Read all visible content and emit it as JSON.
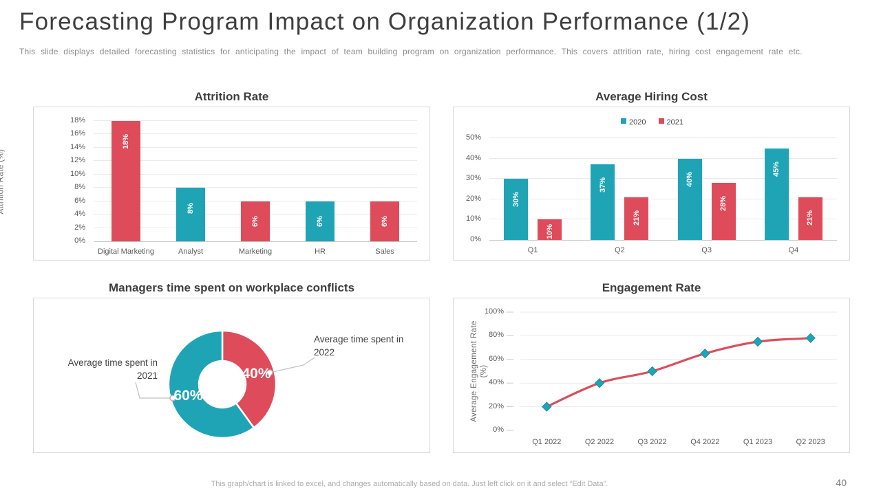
{
  "header": {
    "title": "Forecasting Program Impact on Organization Performance (1/2)",
    "subtitle": "This slide displays detailed forecasting statistics for anticipating the impact of team building program on organization performance. This covers attrition rate, hiring cost engagement rate etc."
  },
  "footer": {
    "note": "This graph/chart is linked to excel, and changes automatically based on data. Just left click on it and select “Edit Data”.",
    "page_number": "40"
  },
  "colors": {
    "teal": "#1EA4B5",
    "red": "#DE4B5A",
    "line_red": "#D7505E",
    "marker_edge": "#17909F",
    "axis_text": "#595959",
    "grid": "#E9E9E9",
    "axis_line": "#C9C9C9",
    "label_on_bar": "#FFFFFF",
    "callout_line": "#C0C0C0"
  },
  "chart_data": [
    {
      "id": "attrition",
      "type": "bar",
      "title": "Attrition Rate",
      "ylabel": "Attrition Rate (%)",
      "categories": [
        "Digital Marketing",
        "Analyst",
        "Marketing",
        "HR",
        "Sales"
      ],
      "series": [
        {
          "values": [
            18,
            8,
            6,
            6,
            6
          ],
          "labels": [
            "18%",
            "8%",
            "6%",
            "6%",
            "6%"
          ],
          "bar_colors": [
            "red",
            "teal",
            "red",
            "teal",
            "red"
          ]
        }
      ],
      "ylim": [
        0,
        18
      ],
      "ytick_step": 2,
      "yticks": [
        "0%",
        "2%",
        "4%",
        "6%",
        "8%",
        "10%",
        "12%",
        "14%",
        "16%",
        "18%"
      ],
      "grid": true
    },
    {
      "id": "hiring",
      "type": "bar",
      "title": "Average Hiring Cost",
      "categories": [
        "Q1",
        "Q2",
        "Q3",
        "Q4"
      ],
      "series": [
        {
          "name": "2020",
          "color": "teal",
          "values": [
            30,
            37,
            40,
            45
          ],
          "labels": [
            "30%",
            "37%",
            "40%",
            "45%"
          ]
        },
        {
          "name": "2021",
          "color": "red",
          "values": [
            10,
            21,
            28,
            21
          ],
          "labels": [
            "10%",
            "21%",
            "28%",
            "21%"
          ]
        }
      ],
      "ylim": [
        0,
        50
      ],
      "ytick_step": 10,
      "yticks": [
        "0%",
        "10%",
        "20%",
        "30%",
        "40%",
        "50%"
      ],
      "legend_position": "top",
      "grid": true
    },
    {
      "id": "conflicts",
      "type": "pie",
      "title": "Managers time spent on workplace conflicts",
      "slices": [
        {
          "label": "Average time spent in 2022",
          "label_lines": [
            "Average time spent in",
            "2022"
          ],
          "value": 40,
          "value_label": "40%",
          "color": "red"
        },
        {
          "label": "Average time spent in 2021",
          "label_lines": [
            "Average time spent in",
            "2021"
          ],
          "value": 60,
          "value_label": "60%",
          "color": "teal"
        }
      ]
    },
    {
      "id": "engagement",
      "type": "line",
      "title": "Engagement Rate",
      "ylabel_lines": [
        "Average Engagement Rate",
        "(%)"
      ],
      "x": [
        "Q1 2022",
        "Q2 2022",
        "Q3 2022",
        "Q4 2022",
        "Q1 2023",
        "Q2 2023"
      ],
      "values": [
        20,
        40,
        50,
        65,
        75,
        78
      ],
      "ylim": [
        0,
        100
      ],
      "ytick_step": 20,
      "yticks": [
        "0%",
        "20%",
        "40%",
        "60%",
        "80%",
        "100%"
      ],
      "line_color": "line_red",
      "marker": "diamond",
      "marker_color": "teal",
      "grid": true
    }
  ]
}
